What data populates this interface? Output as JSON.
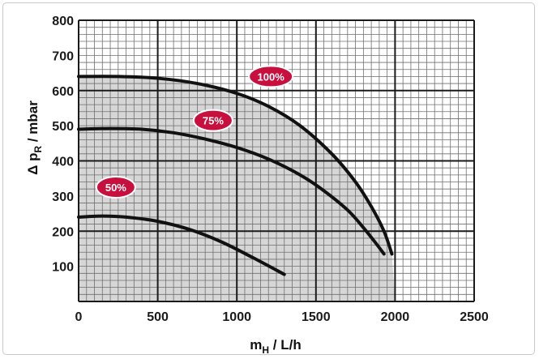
{
  "chart_data": {
    "type": "line",
    "xlabel_main": "m",
    "xlabel_sub": "H",
    "xlabel_unit": " / L/h",
    "ylabel_main": "Δ p",
    "ylabel_sub": "R",
    "ylabel_unit": " / mbar",
    "xlim": [
      0,
      2500
    ],
    "ylim": [
      0,
      800
    ],
    "x_ticks": [
      "0",
      "500",
      "1000",
      "1500",
      "2000",
      "2500"
    ],
    "y_ticks": [
      "100",
      "200",
      "300",
      "400",
      "500",
      "600",
      "700",
      "800"
    ],
    "grid": true,
    "series": [
      {
        "name": "100%",
        "color": "#111111",
        "points": [
          [
            0,
            640
          ],
          [
            250,
            640
          ],
          [
            500,
            635
          ],
          [
            750,
            620
          ],
          [
            1000,
            592
          ],
          [
            1200,
            555
          ],
          [
            1400,
            500
          ],
          [
            1600,
            420
          ],
          [
            1750,
            340
          ],
          [
            1850,
            270
          ],
          [
            1930,
            200
          ],
          [
            1980,
            135
          ]
        ]
      },
      {
        "name": "75%",
        "color": "#111111",
        "points": [
          [
            0,
            490
          ],
          [
            200,
            492
          ],
          [
            400,
            490
          ],
          [
            600,
            480
          ],
          [
            800,
            462
          ],
          [
            1000,
            438
          ],
          [
            1200,
            405
          ],
          [
            1400,
            360
          ],
          [
            1550,
            315
          ],
          [
            1700,
            260
          ],
          [
            1800,
            210
          ],
          [
            1880,
            165
          ],
          [
            1930,
            135
          ]
        ]
      },
      {
        "name": "50%",
        "color": "#111111",
        "points": [
          [
            0,
            240
          ],
          [
            150,
            243
          ],
          [
            300,
            240
          ],
          [
            500,
            228
          ],
          [
            700,
            205
          ],
          [
            900,
            170
          ],
          [
            1100,
            125
          ],
          [
            1300,
            77
          ]
        ]
      }
    ],
    "annotations": [
      {
        "text": "100%",
        "x": 1215,
        "y": 640
      },
      {
        "text": "75%",
        "x": 850,
        "y": 515
      },
      {
        "text": "50%",
        "x": 235,
        "y": 325
      }
    ],
    "colors": {
      "grid_major": "#1a1a1a",
      "grid_minor": "#6f6f6f",
      "shade": "#cfcfcf",
      "badge": "#c8103e",
      "curve": "#111111"
    }
  }
}
